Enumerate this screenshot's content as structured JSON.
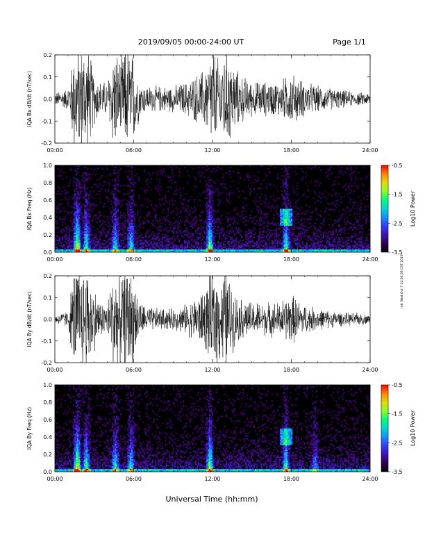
{
  "header": {
    "title": "2019/09/05  00:00-24:00 UT",
    "page": "Page 1/1"
  },
  "xlabel": "Universal Time (hh:mm)",
  "side_text": "mtr Wed Oct 7 12:56:56 CST 2019",
  "chart_data": [
    {
      "type": "line",
      "ylabel": "IQA Bx dB/dt (nT/sec)",
      "x_ticks": [
        "00:00",
        "06:00",
        "12:00",
        "18:00",
        "24:00"
      ],
      "y_ticks": [
        "-0.2",
        "-0.1",
        "0.0",
        "0.1",
        "0.2"
      ],
      "xlim": [
        0,
        24
      ],
      "ylim": [
        -0.2,
        0.2
      ],
      "envelope": {
        "hours": [
          0,
          1,
          1.5,
          2,
          2.5,
          3,
          3.5,
          4,
          4.5,
          5,
          5.5,
          6,
          6.5,
          7,
          8,
          9,
          10,
          11,
          11.5,
          12,
          12.5,
          13,
          13.5,
          14,
          15,
          16,
          17,
          18,
          19,
          20,
          21,
          22,
          23,
          24
        ],
        "amplitude": [
          0.03,
          0.05,
          0.25,
          0.25,
          0.25,
          0.12,
          0.08,
          0.08,
          0.25,
          0.18,
          0.25,
          0.2,
          0.08,
          0.06,
          0.06,
          0.06,
          0.08,
          0.12,
          0.15,
          0.25,
          0.18,
          0.25,
          0.18,
          0.12,
          0.08,
          0.08,
          0.08,
          0.12,
          0.08,
          0.06,
          0.05,
          0.04,
          0.03,
          0.03
        ]
      }
    },
    {
      "type": "heatmap",
      "ylabel": "IQA Bx Freq (Hz)",
      "x_ticks": [
        "00:00",
        "06:00",
        "12:00",
        "18:00",
        "24:00"
      ],
      "y_ticks": [
        "0.0",
        "0.2",
        "0.4",
        "0.6",
        "0.8",
        "1.0"
      ],
      "xlim": [
        0,
        24
      ],
      "ylim": [
        0,
        1.0
      ],
      "colorbar": {
        "label": "Log10 Power",
        "ticks": [
          "-0.5",
          "-1.5",
          "-2.5",
          "-3.5"
        ],
        "range": [
          -3.5,
          -0.5
        ]
      },
      "features": [
        {
          "hour": 1.7,
          "power": 1.0
        },
        {
          "hour": 2.4,
          "power": 0.7
        },
        {
          "hour": 4.6,
          "power": 0.6
        },
        {
          "hour": 5.8,
          "power": 0.6
        },
        {
          "hour": 11.8,
          "power": 0.8
        },
        {
          "hour": 17.6,
          "power": 0.7
        }
      ]
    },
    {
      "type": "line",
      "ylabel": "IQA By dB/dt (nT/sec)",
      "x_ticks": [
        "00:00",
        "06:00",
        "12:00",
        "18:00",
        "24:00"
      ],
      "y_ticks": [
        "-0.2",
        "-0.1",
        "0.0",
        "0.1",
        "0.2"
      ],
      "xlim": [
        0,
        24
      ],
      "ylim": [
        -0.2,
        0.2
      ],
      "envelope": {
        "hours": [
          0,
          1,
          1.5,
          2,
          2.5,
          3,
          3.5,
          4,
          4.5,
          5,
          5.5,
          6,
          6.5,
          7,
          8,
          9,
          10,
          11,
          11.5,
          12,
          12.5,
          13,
          13.5,
          14,
          15,
          16,
          17,
          18,
          19,
          20,
          21,
          22,
          23,
          24
        ],
        "amplitude": [
          0.02,
          0.04,
          0.25,
          0.25,
          0.25,
          0.15,
          0.08,
          0.08,
          0.25,
          0.2,
          0.25,
          0.2,
          0.08,
          0.06,
          0.05,
          0.05,
          0.07,
          0.12,
          0.15,
          0.25,
          0.2,
          0.25,
          0.15,
          0.1,
          0.08,
          0.08,
          0.08,
          0.12,
          0.07,
          0.05,
          0.04,
          0.03,
          0.03,
          0.02
        ]
      }
    },
    {
      "type": "heatmap",
      "ylabel": "IQA By Freq (Hz)",
      "x_ticks": [
        "00:00",
        "06:00",
        "12:00",
        "18:00",
        "24:00"
      ],
      "y_ticks": [
        "0.0",
        "0.2",
        "0.4",
        "0.6",
        "0.8",
        "1.0"
      ],
      "xlim": [
        0,
        24
      ],
      "ylim": [
        0,
        1.0
      ],
      "colorbar": {
        "label": "Log10 Power",
        "ticks": [
          "-0.5",
          "-1.5",
          "-2.5",
          "-3.5"
        ],
        "range": [
          -3.5,
          -0.5
        ]
      },
      "features": [
        {
          "hour": 1.7,
          "power": 1.0
        },
        {
          "hour": 2.4,
          "power": 0.7
        },
        {
          "hour": 4.6,
          "power": 0.6
        },
        {
          "hour": 5.8,
          "power": 0.6
        },
        {
          "hour": 11.8,
          "power": 0.8
        },
        {
          "hour": 17.6,
          "power": 0.7
        },
        {
          "hour": 19.8,
          "power": 0.4
        }
      ]
    }
  ]
}
